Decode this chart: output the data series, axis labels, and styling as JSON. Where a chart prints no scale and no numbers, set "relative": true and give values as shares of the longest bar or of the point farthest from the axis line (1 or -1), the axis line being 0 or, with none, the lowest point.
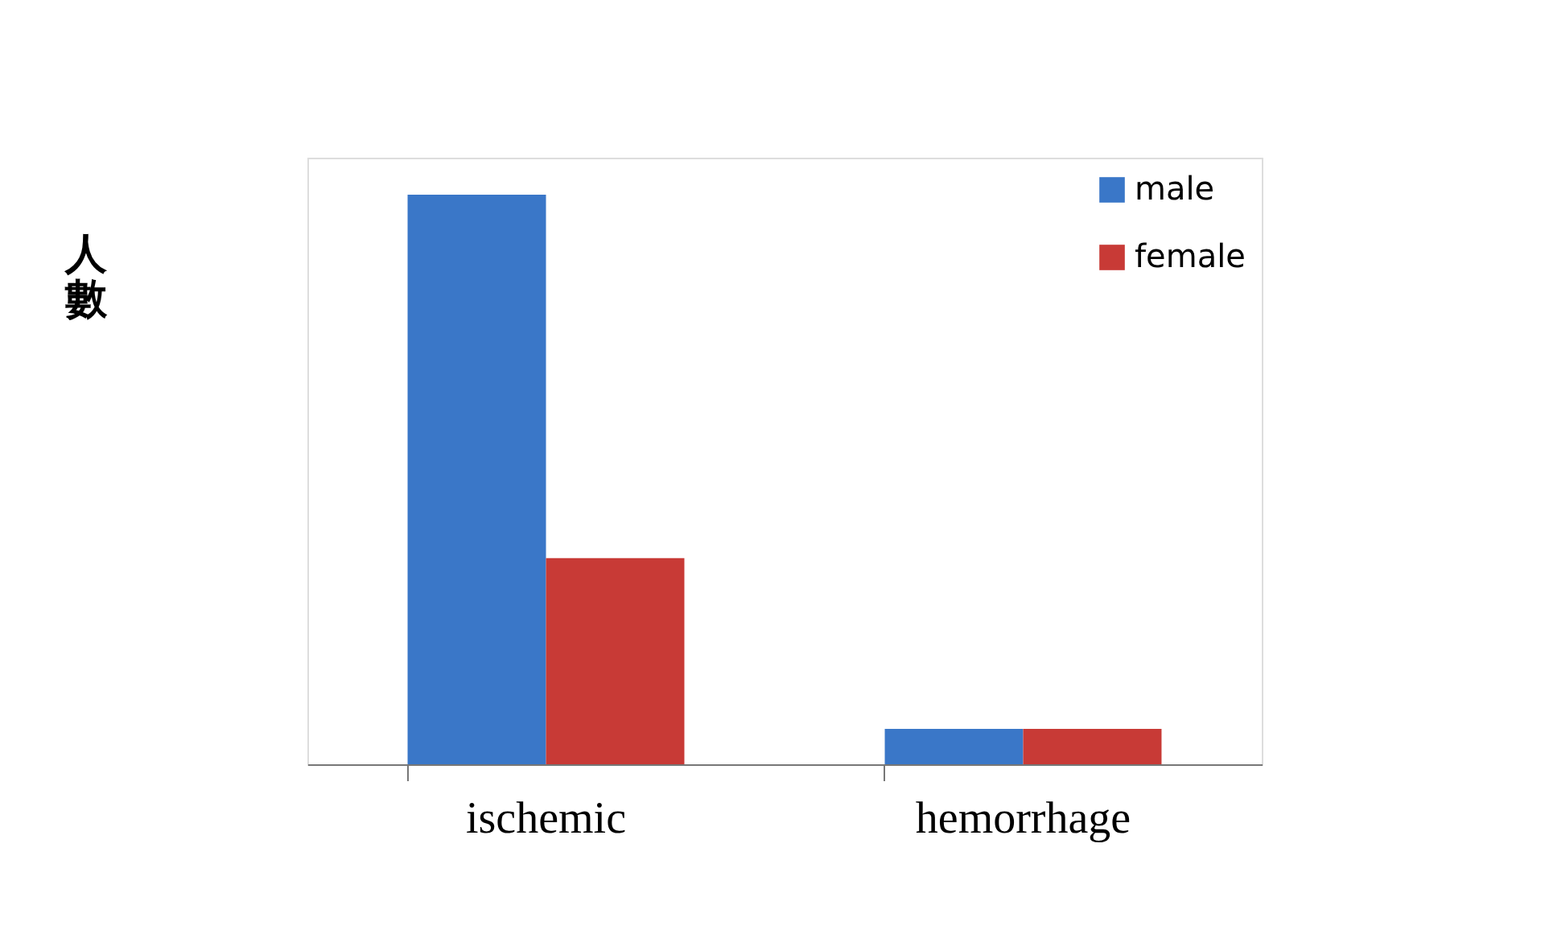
{
  "chart_data": {
    "type": "bar",
    "ylabel": "人數",
    "categories": [
      "ischemic",
      "hemorrhage"
    ],
    "relative": true,
    "series": [
      {
        "name": "male",
        "color": "#3a77c8",
        "values": [
          1.0,
          0.062
        ]
      },
      {
        "name": "female",
        "color": "#c83a36",
        "values": [
          0.362,
          0.062
        ]
      }
    ],
    "legend": "top right",
    "grid": false
  }
}
